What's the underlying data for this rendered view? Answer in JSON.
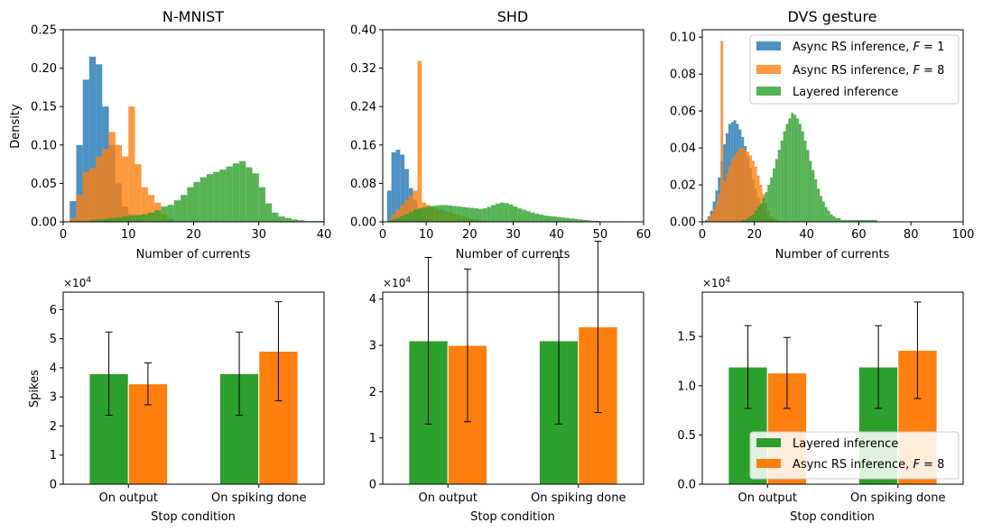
{
  "colors": {
    "blue": "#1f77b4",
    "orange": "#ff7f0e",
    "green": "#2ca02c"
  },
  "chart_data": [
    {
      "type": "histogram",
      "title": "N-MNIST",
      "xlabel": "Number of currents",
      "ylabel": "Density",
      "xlim": [
        0,
        40
      ],
      "ylim": [
        0,
        0.25
      ],
      "xticks": [
        0,
        10,
        20,
        30,
        40
      ],
      "xtick_labels": [
        "0",
        "10",
        "20",
        "30",
        "40"
      ],
      "yticks": [
        0,
        0.05,
        0.1,
        0.15,
        0.2,
        0.25
      ],
      "ytick_labels": [
        "0.00",
        "0.05",
        "0.10",
        "0.15",
        "0.20",
        "0.25"
      ],
      "series": [
        {
          "name": "Async RS inference, F=1",
          "color": "blue",
          "bin_start": 1,
          "bin_width": 1,
          "values": [
            0.027,
            0.1,
            0.185,
            0.215,
            0.205,
            0.15,
            0.1,
            0.05,
            0.02,
            0.01,
            0.003
          ]
        },
        {
          "name": "Async RS inference, F=8",
          "color": "orange",
          "bin_start": 1,
          "bin_width": 1,
          "values": [
            0.005,
            0.035,
            0.065,
            0.07,
            0.085,
            0.095,
            0.117,
            0.1,
            0.085,
            0.15,
            0.075,
            0.045,
            0.035,
            0.025,
            0.01,
            0.004
          ]
        },
        {
          "name": "Layered inference",
          "color": "green",
          "bin_start": 1,
          "bin_width": 1,
          "values": [
            0.001,
            0.001,
            0.001,
            0.002,
            0.003,
            0.004,
            0.005,
            0.006,
            0.007,
            0.008,
            0.009,
            0.01,
            0.012,
            0.015,
            0.02,
            0.022,
            0.028,
            0.035,
            0.045,
            0.052,
            0.058,
            0.062,
            0.065,
            0.068,
            0.072,
            0.076,
            0.079,
            0.071,
            0.063,
            0.045,
            0.024,
            0.012,
            0.007,
            0.005,
            0.003,
            0.002,
            0.001,
            0.001,
            0.001
          ]
        }
      ]
    },
    {
      "type": "histogram",
      "title": "SHD",
      "xlabel": "Number of currents",
      "ylabel": "",
      "xlim": [
        0,
        60
      ],
      "ylim": [
        0,
        0.4
      ],
      "xticks": [
        0,
        10,
        20,
        30,
        40,
        50,
        60
      ],
      "xtick_labels": [
        "0",
        "10",
        "20",
        "30",
        "40",
        "50",
        "60"
      ],
      "yticks": [
        0,
        0.08,
        0.16,
        0.24,
        0.32,
        0.4
      ],
      "ytick_labels": [
        "0.00",
        "0.08",
        "0.16",
        "0.24",
        "0.32",
        "0.40"
      ],
      "series": [
        {
          "name": "Async RS inference, F=1",
          "color": "blue",
          "bin_start": 1,
          "bin_width": 1,
          "values": [
            0.065,
            0.145,
            0.15,
            0.14,
            0.11,
            0.07,
            0.045,
            0.025,
            0.012,
            0.006,
            0.003
          ]
        },
        {
          "name": "Async RS inference, F=8",
          "color": "orange",
          "bin_start": 1,
          "bin_width": 1,
          "values": [
            0.004,
            0.015,
            0.025,
            0.035,
            0.045,
            0.055,
            0.065,
            0.335,
            0.04,
            0.035,
            0.03,
            0.028,
            0.025,
            0.022,
            0.02,
            0.017,
            0.014,
            0.011,
            0.008,
            0.006,
            0.004,
            0.003,
            0.002,
            0.001
          ]
        },
        {
          "name": "Layered inference",
          "color": "green",
          "bin_start": 1,
          "bin_width": 1,
          "values": [
            0.003,
            0.005,
            0.008,
            0.012,
            0.016,
            0.02,
            0.025,
            0.028,
            0.03,
            0.032,
            0.033,
            0.034,
            0.035,
            0.035,
            0.034,
            0.033,
            0.032,
            0.031,
            0.03,
            0.029,
            0.028,
            0.027,
            0.028,
            0.031,
            0.035,
            0.038,
            0.04,
            0.039,
            0.036,
            0.032,
            0.028,
            0.025,
            0.022,
            0.019,
            0.017,
            0.015,
            0.013,
            0.012,
            0.011,
            0.01,
            0.009,
            0.008,
            0.007,
            0.006,
            0.005,
            0.004,
            0.003,
            0.002,
            0.002,
            0.001,
            0.001,
            0.001,
            0.001,
            0.001,
            0.001
          ]
        }
      ]
    },
    {
      "type": "histogram",
      "title": "DVS gesture",
      "xlabel": "Number of currents",
      "ylabel": "",
      "xlim": [
        0,
        100
      ],
      "ylim": [
        0,
        0.104
      ],
      "xticks": [
        0,
        20,
        40,
        60,
        80,
        100
      ],
      "xtick_labels": [
        "0",
        "20",
        "40",
        "60",
        "80",
        "100"
      ],
      "yticks": [
        0,
        0.02,
        0.04,
        0.06,
        0.08,
        0.1
      ],
      "ytick_labels": [
        "0.00",
        "0.02",
        "0.04",
        "0.06",
        "0.08",
        "0.10"
      ],
      "legend": [
        "Async RS inference, F = 1",
        "Async RS inference, F = 8",
        "Layered inference"
      ],
      "series": [
        {
          "name": "Async RS inference, F=1",
          "color": "blue",
          "bin_start": 1,
          "bin_width": 1,
          "values": [
            0.001,
            0.003,
            0.006,
            0.011,
            0.017,
            0.024,
            0.033,
            0.042,
            0.048,
            0.053,
            0.054,
            0.055,
            0.053,
            0.05,
            0.046,
            0.041,
            0.035,
            0.029,
            0.023,
            0.018,
            0.013,
            0.009,
            0.006,
            0.004,
            0.002,
            0.001
          ]
        },
        {
          "name": "Async RS inference, F=8",
          "color": "orange",
          "bin_start": 2,
          "bin_width": 1,
          "values": [
            0.002,
            0.004,
            0.007,
            0.01,
            0.015,
            0.098,
            0.022,
            0.026,
            0.03,
            0.034,
            0.036,
            0.038,
            0.04,
            0.04,
            0.039,
            0.038,
            0.036,
            0.033,
            0.03,
            0.025,
            0.02,
            0.015,
            0.01,
            0.006,
            0.003,
            0.002,
            0.001
          ]
        },
        {
          "name": "Layered inference",
          "color": "green",
          "bin_start": 15,
          "bin_width": 1,
          "values": [
            0.001,
            0.001,
            0.002,
            0.003,
            0.004,
            0.006,
            0.008,
            0.01,
            0.013,
            0.016,
            0.02,
            0.024,
            0.029,
            0.034,
            0.039,
            0.044,
            0.049,
            0.053,
            0.056,
            0.059,
            0.058,
            0.056,
            0.053,
            0.049,
            0.044,
            0.039,
            0.033,
            0.028,
            0.023,
            0.018,
            0.014,
            0.011,
            0.008,
            0.006,
            0.004,
            0.003,
            0.002,
            0.002,
            0.001,
            0.001,
            0.001,
            0.001,
            0.001,
            0.001,
            0.001,
            0.001,
            0.001,
            0.001,
            0.001,
            0.001,
            0.001,
            0.001
          ]
        }
      ]
    },
    {
      "type": "bar",
      "title": "",
      "xlabel": "Stop condition",
      "ylabel": "Spikes",
      "multiplier": "×10",
      "multiplier_exp": "4",
      "ylim": [
        0,
        6.6
      ],
      "categories": [
        "On output",
        "On spiking done"
      ],
      "yticks": [
        0,
        1,
        2,
        3,
        4,
        5,
        6
      ],
      "ytick_labels": [
        "0",
        "1",
        "2",
        "3",
        "4",
        "5",
        "6"
      ],
      "series": [
        {
          "name": "Layered inference",
          "color": "green",
          "values": [
            3.8,
            3.8
          ],
          "errors": [
            1.43,
            1.43
          ]
        },
        {
          "name": "Async RS inference, F=8",
          "color": "orange",
          "values": [
            3.45,
            4.57
          ],
          "errors": [
            0.72,
            1.7
          ]
        }
      ]
    },
    {
      "type": "bar",
      "title": "",
      "xlabel": "Stop condition",
      "ylabel": "",
      "multiplier": "×10",
      "multiplier_exp": "4",
      "ylim": [
        0,
        4.15
      ],
      "categories": [
        "On output",
        "On spiking done"
      ],
      "yticks": [
        0,
        1,
        2,
        3,
        4
      ],
      "ytick_labels": [
        "0",
        "1",
        "2",
        "3",
        "4"
      ],
      "series": [
        {
          "name": "Layered inference",
          "color": "green",
          "values": [
            3.1,
            3.1
          ],
          "errors": [
            1.8,
            1.8
          ]
        },
        {
          "name": "Async RS inference, F=8",
          "color": "orange",
          "values": [
            3.0,
            3.4
          ],
          "errors": [
            1.65,
            1.85
          ]
        }
      ]
    },
    {
      "type": "bar",
      "title": "",
      "xlabel": "Stop condition",
      "ylabel": "",
      "multiplier": "×10",
      "multiplier_exp": "4",
      "ylim": [
        0,
        1.95
      ],
      "categories": [
        "On output",
        "On spiking done"
      ],
      "yticks": [
        0,
        0.5,
        1,
        1.5
      ],
      "ytick_labels": [
        "0.0",
        "0.5",
        "1.0",
        "1.5"
      ],
      "legend": [
        "Layered inference",
        "Async RS inference, F = 8"
      ],
      "series": [
        {
          "name": "Layered inference",
          "color": "green",
          "values": [
            1.19,
            1.19
          ],
          "errors": [
            0.42,
            0.42
          ]
        },
        {
          "name": "Async RS inference, F=8",
          "color": "orange",
          "values": [
            1.13,
            1.36
          ],
          "errors": [
            0.36,
            0.49
          ]
        }
      ]
    }
  ]
}
